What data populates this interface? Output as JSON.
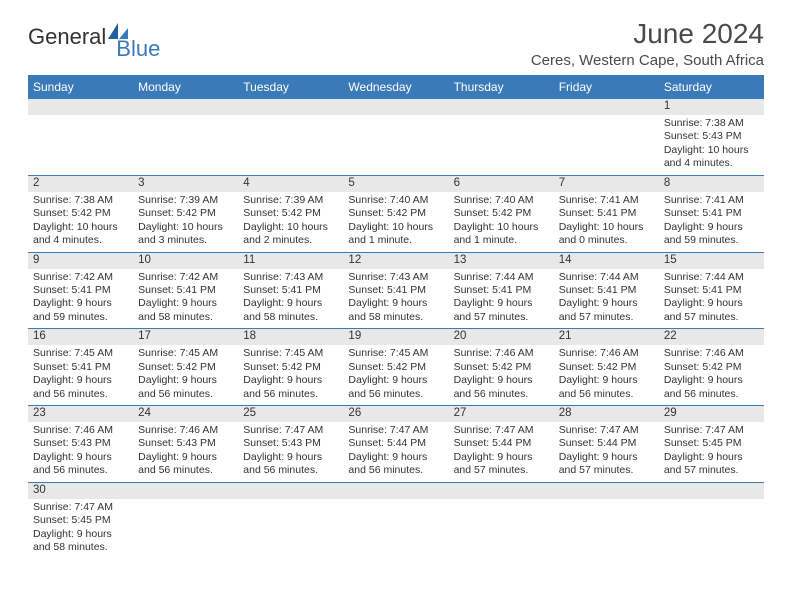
{
  "logo": {
    "general": "General",
    "blue": "Blue"
  },
  "title": "June 2024",
  "location": "Ceres, Western Cape, South Africa",
  "dayHeaders": [
    "Sunday",
    "Monday",
    "Tuesday",
    "Wednesday",
    "Thursday",
    "Friday",
    "Saturday"
  ],
  "colors": {
    "headerBar": "#3b7ab8",
    "dayNumBg": "#e8e8e8",
    "text": "#333333",
    "logoBlue": "#3b7ab8"
  },
  "weeks": [
    {
      "nums": [
        "",
        "",
        "",
        "",
        "",
        "",
        "1"
      ],
      "cells": [
        {
          "empty": true
        },
        {
          "empty": true
        },
        {
          "empty": true
        },
        {
          "empty": true
        },
        {
          "empty": true
        },
        {
          "empty": true
        },
        {
          "sunrise": "Sunrise: 7:38 AM",
          "sunset": "Sunset: 5:43 PM",
          "daylight1": "Daylight: 10 hours",
          "daylight2": "and 4 minutes."
        }
      ]
    },
    {
      "nums": [
        "2",
        "3",
        "4",
        "5",
        "6",
        "7",
        "8"
      ],
      "cells": [
        {
          "sunrise": "Sunrise: 7:38 AM",
          "sunset": "Sunset: 5:42 PM",
          "daylight1": "Daylight: 10 hours",
          "daylight2": "and 4 minutes."
        },
        {
          "sunrise": "Sunrise: 7:39 AM",
          "sunset": "Sunset: 5:42 PM",
          "daylight1": "Daylight: 10 hours",
          "daylight2": "and 3 minutes."
        },
        {
          "sunrise": "Sunrise: 7:39 AM",
          "sunset": "Sunset: 5:42 PM",
          "daylight1": "Daylight: 10 hours",
          "daylight2": "and 2 minutes."
        },
        {
          "sunrise": "Sunrise: 7:40 AM",
          "sunset": "Sunset: 5:42 PM",
          "daylight1": "Daylight: 10 hours",
          "daylight2": "and 1 minute."
        },
        {
          "sunrise": "Sunrise: 7:40 AM",
          "sunset": "Sunset: 5:42 PM",
          "daylight1": "Daylight: 10 hours",
          "daylight2": "and 1 minute."
        },
        {
          "sunrise": "Sunrise: 7:41 AM",
          "sunset": "Sunset: 5:41 PM",
          "daylight1": "Daylight: 10 hours",
          "daylight2": "and 0 minutes."
        },
        {
          "sunrise": "Sunrise: 7:41 AM",
          "sunset": "Sunset: 5:41 PM",
          "daylight1": "Daylight: 9 hours",
          "daylight2": "and 59 minutes."
        }
      ]
    },
    {
      "nums": [
        "9",
        "10",
        "11",
        "12",
        "13",
        "14",
        "15"
      ],
      "cells": [
        {
          "sunrise": "Sunrise: 7:42 AM",
          "sunset": "Sunset: 5:41 PM",
          "daylight1": "Daylight: 9 hours",
          "daylight2": "and 59 minutes."
        },
        {
          "sunrise": "Sunrise: 7:42 AM",
          "sunset": "Sunset: 5:41 PM",
          "daylight1": "Daylight: 9 hours",
          "daylight2": "and 58 minutes."
        },
        {
          "sunrise": "Sunrise: 7:43 AM",
          "sunset": "Sunset: 5:41 PM",
          "daylight1": "Daylight: 9 hours",
          "daylight2": "and 58 minutes."
        },
        {
          "sunrise": "Sunrise: 7:43 AM",
          "sunset": "Sunset: 5:41 PM",
          "daylight1": "Daylight: 9 hours",
          "daylight2": "and 58 minutes."
        },
        {
          "sunrise": "Sunrise: 7:44 AM",
          "sunset": "Sunset: 5:41 PM",
          "daylight1": "Daylight: 9 hours",
          "daylight2": "and 57 minutes."
        },
        {
          "sunrise": "Sunrise: 7:44 AM",
          "sunset": "Sunset: 5:41 PM",
          "daylight1": "Daylight: 9 hours",
          "daylight2": "and 57 minutes."
        },
        {
          "sunrise": "Sunrise: 7:44 AM",
          "sunset": "Sunset: 5:41 PM",
          "daylight1": "Daylight: 9 hours",
          "daylight2": "and 57 minutes."
        }
      ]
    },
    {
      "nums": [
        "16",
        "17",
        "18",
        "19",
        "20",
        "21",
        "22"
      ],
      "cells": [
        {
          "sunrise": "Sunrise: 7:45 AM",
          "sunset": "Sunset: 5:41 PM",
          "daylight1": "Daylight: 9 hours",
          "daylight2": "and 56 minutes."
        },
        {
          "sunrise": "Sunrise: 7:45 AM",
          "sunset": "Sunset: 5:42 PM",
          "daylight1": "Daylight: 9 hours",
          "daylight2": "and 56 minutes."
        },
        {
          "sunrise": "Sunrise: 7:45 AM",
          "sunset": "Sunset: 5:42 PM",
          "daylight1": "Daylight: 9 hours",
          "daylight2": "and 56 minutes."
        },
        {
          "sunrise": "Sunrise: 7:45 AM",
          "sunset": "Sunset: 5:42 PM",
          "daylight1": "Daylight: 9 hours",
          "daylight2": "and 56 minutes."
        },
        {
          "sunrise": "Sunrise: 7:46 AM",
          "sunset": "Sunset: 5:42 PM",
          "daylight1": "Daylight: 9 hours",
          "daylight2": "and 56 minutes."
        },
        {
          "sunrise": "Sunrise: 7:46 AM",
          "sunset": "Sunset: 5:42 PM",
          "daylight1": "Daylight: 9 hours",
          "daylight2": "and 56 minutes."
        },
        {
          "sunrise": "Sunrise: 7:46 AM",
          "sunset": "Sunset: 5:42 PM",
          "daylight1": "Daylight: 9 hours",
          "daylight2": "and 56 minutes."
        }
      ]
    },
    {
      "nums": [
        "23",
        "24",
        "25",
        "26",
        "27",
        "28",
        "29"
      ],
      "cells": [
        {
          "sunrise": "Sunrise: 7:46 AM",
          "sunset": "Sunset: 5:43 PM",
          "daylight1": "Daylight: 9 hours",
          "daylight2": "and 56 minutes."
        },
        {
          "sunrise": "Sunrise: 7:46 AM",
          "sunset": "Sunset: 5:43 PM",
          "daylight1": "Daylight: 9 hours",
          "daylight2": "and 56 minutes."
        },
        {
          "sunrise": "Sunrise: 7:47 AM",
          "sunset": "Sunset: 5:43 PM",
          "daylight1": "Daylight: 9 hours",
          "daylight2": "and 56 minutes."
        },
        {
          "sunrise": "Sunrise: 7:47 AM",
          "sunset": "Sunset: 5:44 PM",
          "daylight1": "Daylight: 9 hours",
          "daylight2": "and 56 minutes."
        },
        {
          "sunrise": "Sunrise: 7:47 AM",
          "sunset": "Sunset: 5:44 PM",
          "daylight1": "Daylight: 9 hours",
          "daylight2": "and 57 minutes."
        },
        {
          "sunrise": "Sunrise: 7:47 AM",
          "sunset": "Sunset: 5:44 PM",
          "daylight1": "Daylight: 9 hours",
          "daylight2": "and 57 minutes."
        },
        {
          "sunrise": "Sunrise: 7:47 AM",
          "sunset": "Sunset: 5:45 PM",
          "daylight1": "Daylight: 9 hours",
          "daylight2": "and 57 minutes."
        }
      ]
    },
    {
      "nums": [
        "30",
        "",
        "",
        "",
        "",
        "",
        ""
      ],
      "cells": [
        {
          "sunrise": "Sunrise: 7:47 AM",
          "sunset": "Sunset: 5:45 PM",
          "daylight1": "Daylight: 9 hours",
          "daylight2": "and 58 minutes."
        },
        {
          "empty": true
        },
        {
          "empty": true
        },
        {
          "empty": true
        },
        {
          "empty": true
        },
        {
          "empty": true
        },
        {
          "empty": true
        }
      ]
    }
  ]
}
